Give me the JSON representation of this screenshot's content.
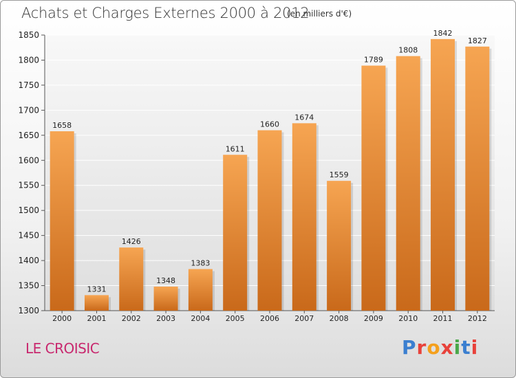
{
  "header": {
    "title": "Achats et Charges Externes 2000 à 2012",
    "subtitle": "(en milliers d'€)"
  },
  "footer": {
    "commune": "LE CROISIC",
    "logo_letters": [
      "P",
      "r",
      "o",
      "x",
      "i",
      "t",
      "i"
    ],
    "logo_colors": [
      "#3b7fd0",
      "#e8423b",
      "#f4a01d",
      "#e8423b",
      "#4aa84a",
      "#3b7fd0",
      "#e8423b"
    ]
  },
  "chart_data": {
    "type": "bar",
    "title": "Achats et Charges Externes 2000 à 2012",
    "subtitle": "(en milliers d'€)",
    "categories": [
      "2000",
      "2001",
      "2002",
      "2003",
      "2004",
      "2005",
      "2006",
      "2007",
      "2008",
      "2009",
      "2010",
      "2011",
      "2012"
    ],
    "values": [
      1658,
      1331,
      1426,
      1348,
      1383,
      1611,
      1660,
      1674,
      1559,
      1789,
      1808,
      1842,
      1827
    ],
    "ylim": [
      1300,
      1850
    ],
    "yticks": [
      1300,
      1350,
      1400,
      1450,
      1500,
      1550,
      1600,
      1650,
      1700,
      1750,
      1800,
      1850
    ],
    "grid": true,
    "bar_color": "#f0963a",
    "data_labels": true
  }
}
